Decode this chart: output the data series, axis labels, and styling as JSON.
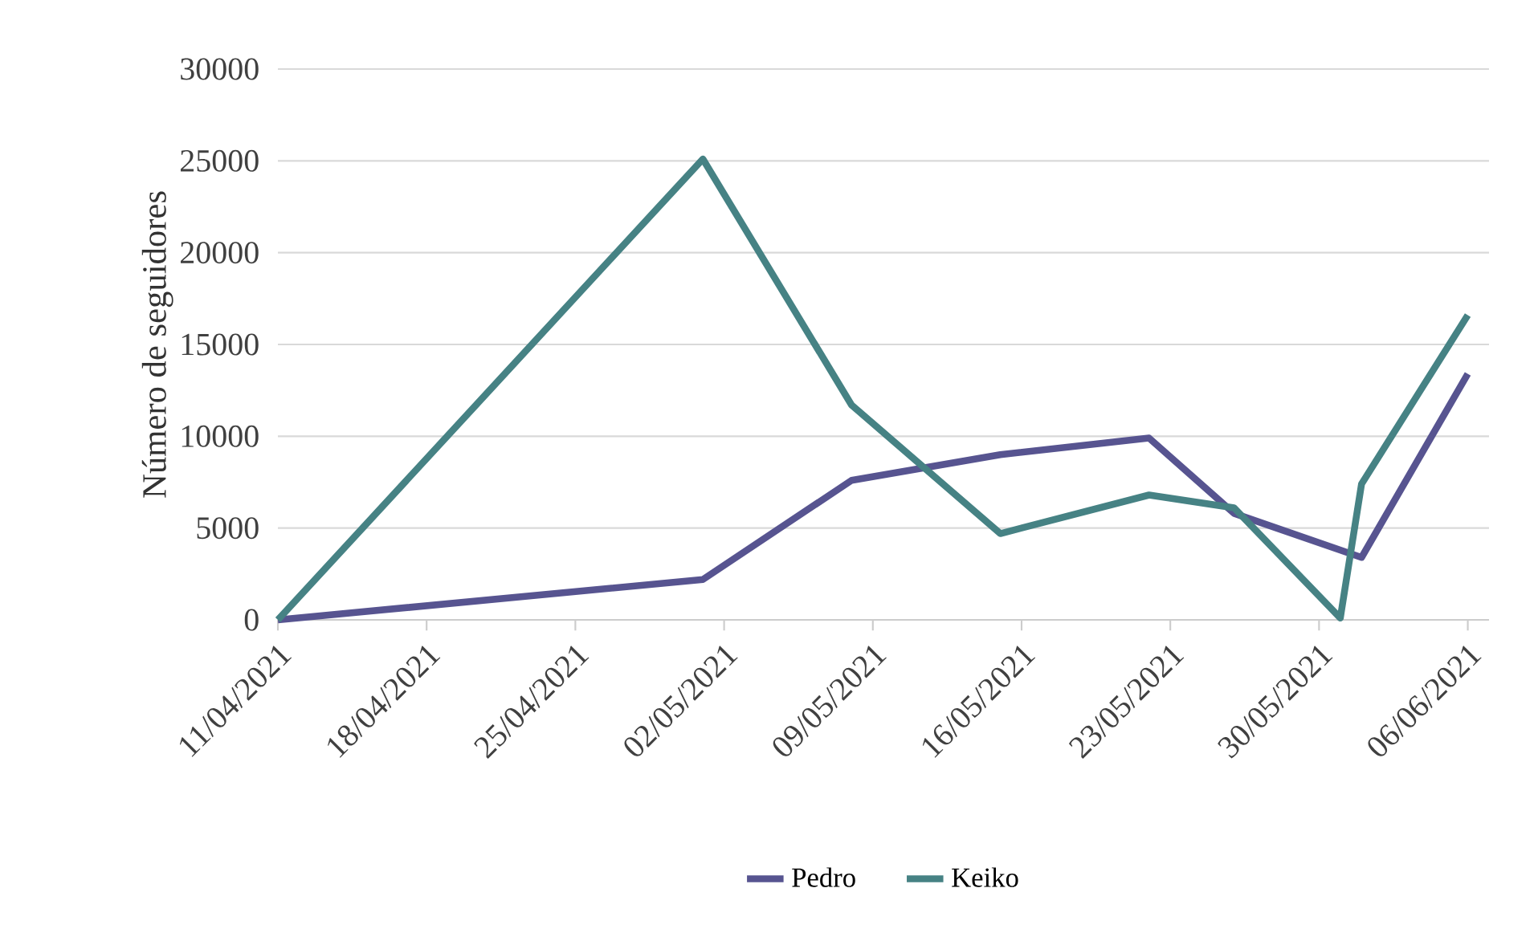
{
  "chart_data": {
    "type": "line",
    "ylabel": "Número de seguidores",
    "xlim": [
      "2021-04-11",
      "2021-06-07"
    ],
    "xticks": [
      {
        "value": "2021-04-11",
        "label": "11/04/2021"
      },
      {
        "value": "2021-04-18",
        "label": "18/04/2021"
      },
      {
        "value": "2021-04-25",
        "label": "25/04/2021"
      },
      {
        "value": "2021-05-02",
        "label": "02/05/2021"
      },
      {
        "value": "2021-05-09",
        "label": "09/05/2021"
      },
      {
        "value": "2021-05-16",
        "label": "16/05/2021"
      },
      {
        "value": "2021-05-23",
        "label": "23/05/2021"
      },
      {
        "value": "2021-05-30",
        "label": "30/05/2021"
      },
      {
        "value": "2021-06-06",
        "label": "06/06/2021"
      }
    ],
    "ylim": [
      0,
      30000
    ],
    "yticks": [
      0,
      5000,
      10000,
      15000,
      20000,
      25000,
      30000
    ],
    "grid": "y",
    "legend": "bottom",
    "marker": "none",
    "line_style": "solid",
    "series": [
      {
        "name": "Pedro",
        "color": "#575490",
        "x": [
          "2021-04-11",
          "2021-05-01",
          "2021-05-08",
          "2021-05-15",
          "2021-05-22",
          "2021-05-26",
          "2021-06-01",
          "2021-06-06"
        ],
        "values": [
          0,
          2200,
          7600,
          9000,
          9900,
          5800,
          3400,
          13400
        ]
      },
      {
        "name": "Keiko",
        "color": "#468284",
        "x": [
          "2021-04-11",
          "2021-05-01",
          "2021-05-08",
          "2021-05-15",
          "2021-05-22",
          "2021-05-26",
          "2021-05-31",
          "2021-06-01",
          "2021-06-06"
        ],
        "values": [
          0,
          25100,
          11700,
          4700,
          6800,
          6100,
          100,
          7400,
          16600
        ]
      }
    ]
  }
}
